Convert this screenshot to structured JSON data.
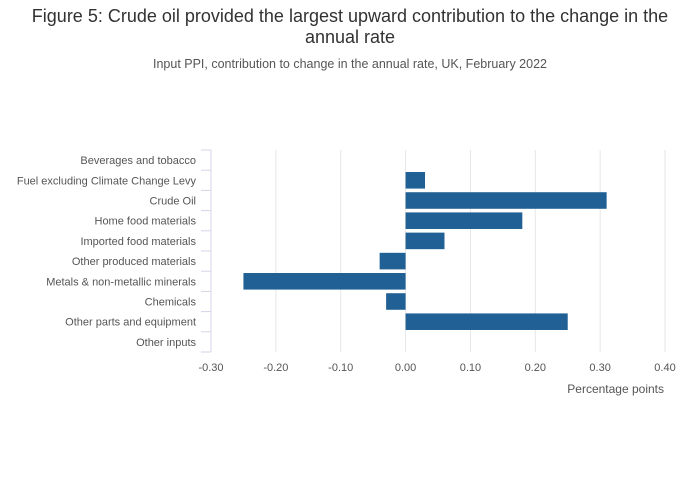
{
  "header": {
    "title": "Figure 5: Crude oil provided the largest upward contribution to the change in the annual rate",
    "subtitle": "Input PPI, contribution to change in the annual rate, UK, February 2022"
  },
  "colors": {
    "bar": "#206095",
    "grid": "#e6e6e6",
    "axis": "#d8d2e8",
    "text": "#555555"
  },
  "chart_data": {
    "type": "bar",
    "orientation": "horizontal",
    "categories": [
      "Beverages and tobacco",
      "Fuel excluding Climate Change Levy",
      "Crude Oil",
      "Home food materials",
      "Imported food materials",
      "Other produced materials",
      "Metals & non-metallic minerals",
      "Chemicals",
      "Other parts and equipment",
      "Other inputs"
    ],
    "values": [
      0.0,
      0.03,
      0.31,
      0.18,
      0.06,
      -0.04,
      -0.25,
      -0.03,
      0.25,
      0.0
    ],
    "xlabel": "Percentage points",
    "xlim": [
      -0.3,
      0.4
    ],
    "xticks": [
      -0.3,
      -0.2,
      -0.1,
      0.0,
      0.1,
      0.2,
      0.3,
      0.4
    ],
    "xtick_labels": [
      "-0.30",
      "-0.20",
      "-0.10",
      "0.00",
      "0.10",
      "0.20",
      "0.30",
      "0.40"
    ],
    "grid": "vertical"
  }
}
